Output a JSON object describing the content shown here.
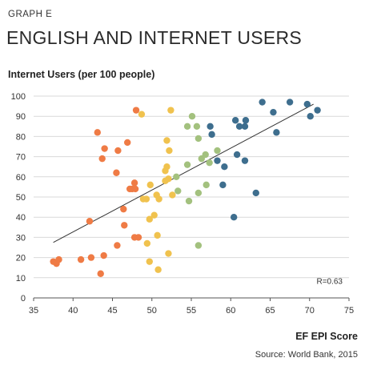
{
  "header": {
    "graph_label": "GRAPH E",
    "title": "ENGLISH AND INTERNET USERS"
  },
  "footer": {
    "source": "Source: World Bank, 2015"
  },
  "colors": {
    "orange": "#ef7b45",
    "yellow": "#f0c24e",
    "green": "#a3c17e",
    "teal": "#3e6e8e",
    "grid": "#d9d9d9",
    "axis": "#555555"
  },
  "chart_data": {
    "type": "scatter",
    "ylabel": "Internet Users (per 100 people)",
    "xlabel": "EF EPI Score",
    "xlim": [
      35,
      75
    ],
    "ylim": [
      0,
      100
    ],
    "x_ticks": [
      35,
      40,
      45,
      50,
      55,
      60,
      65,
      70,
      75
    ],
    "y_ticks": [
      0,
      10,
      20,
      30,
      40,
      50,
      60,
      70,
      80,
      90,
      100
    ],
    "grid": "horizontal",
    "annotation": "R=0.63",
    "trendline": {
      "x1": 37.5,
      "y1": 27.5,
      "x2": 70.5,
      "y2": 96
    },
    "series": [
      {
        "color": "orange",
        "points": [
          [
            37.5,
            18
          ],
          [
            37.9,
            17
          ],
          [
            38.2,
            19
          ],
          [
            41,
            19
          ],
          [
            42.3,
            20
          ],
          [
            43.9,
            21
          ],
          [
            43.5,
            12
          ],
          [
            42.1,
            38
          ],
          [
            43.7,
            69
          ],
          [
            44,
            74
          ],
          [
            43.1,
            82
          ],
          [
            45.5,
            62
          ],
          [
            45.7,
            73
          ],
          [
            46.9,
            77
          ],
          [
            47.2,
            54
          ],
          [
            47.5,
            54
          ],
          [
            47.8,
            57
          ],
          [
            47.9,
            54
          ],
          [
            46.5,
            36
          ],
          [
            46.4,
            44
          ],
          [
            45.6,
            26
          ],
          [
            47.8,
            30
          ],
          [
            48.3,
            30
          ],
          [
            48.0,
            93
          ]
        ]
      },
      {
        "color": "yellow",
        "points": [
          [
            48.7,
            91
          ],
          [
            52.4,
            93
          ],
          [
            51.9,
            78
          ],
          [
            52.2,
            73
          ],
          [
            51.9,
            65
          ],
          [
            51.7,
            63
          ],
          [
            51.7,
            58
          ],
          [
            52.1,
            59
          ],
          [
            52.6,
            51
          ],
          [
            49.8,
            56
          ],
          [
            48.9,
            49
          ],
          [
            49.3,
            49
          ],
          [
            50.6,
            51
          ],
          [
            50.9,
            49
          ],
          [
            49.7,
            39
          ],
          [
            50.3,
            41
          ],
          [
            50.7,
            31
          ],
          [
            49.4,
            27
          ],
          [
            49.7,
            18
          ],
          [
            50.8,
            14
          ],
          [
            52.1,
            22
          ]
        ]
      },
      {
        "color": "green",
        "points": [
          [
            55.1,
            90
          ],
          [
            54.5,
            85
          ],
          [
            55.7,
            85
          ],
          [
            55.9,
            79
          ],
          [
            56.3,
            69
          ],
          [
            56.8,
            71
          ],
          [
            57.3,
            67
          ],
          [
            58.3,
            73
          ],
          [
            54.5,
            66
          ],
          [
            53.1,
            60
          ],
          [
            53.3,
            53
          ],
          [
            54.7,
            48
          ],
          [
            56.9,
            56
          ],
          [
            55.9,
            52
          ],
          [
            55.9,
            26
          ]
        ]
      },
      {
        "color": "teal",
        "points": [
          [
            57.4,
            85
          ],
          [
            57.6,
            81
          ],
          [
            60.6,
            88
          ],
          [
            61.1,
            85
          ],
          [
            61.8,
            85
          ],
          [
            61.9,
            88
          ],
          [
            60.8,
            71
          ],
          [
            61.8,
            68
          ],
          [
            58.3,
            68
          ],
          [
            59.2,
            65
          ],
          [
            59.0,
            56
          ],
          [
            60.4,
            40
          ],
          [
            63.2,
            52
          ],
          [
            64.0,
            97
          ],
          [
            65.4,
            92
          ],
          [
            65.8,
            82
          ],
          [
            67.5,
            97
          ],
          [
            69.7,
            96
          ],
          [
            70.1,
            90
          ],
          [
            71.0,
            93
          ]
        ]
      }
    ]
  }
}
